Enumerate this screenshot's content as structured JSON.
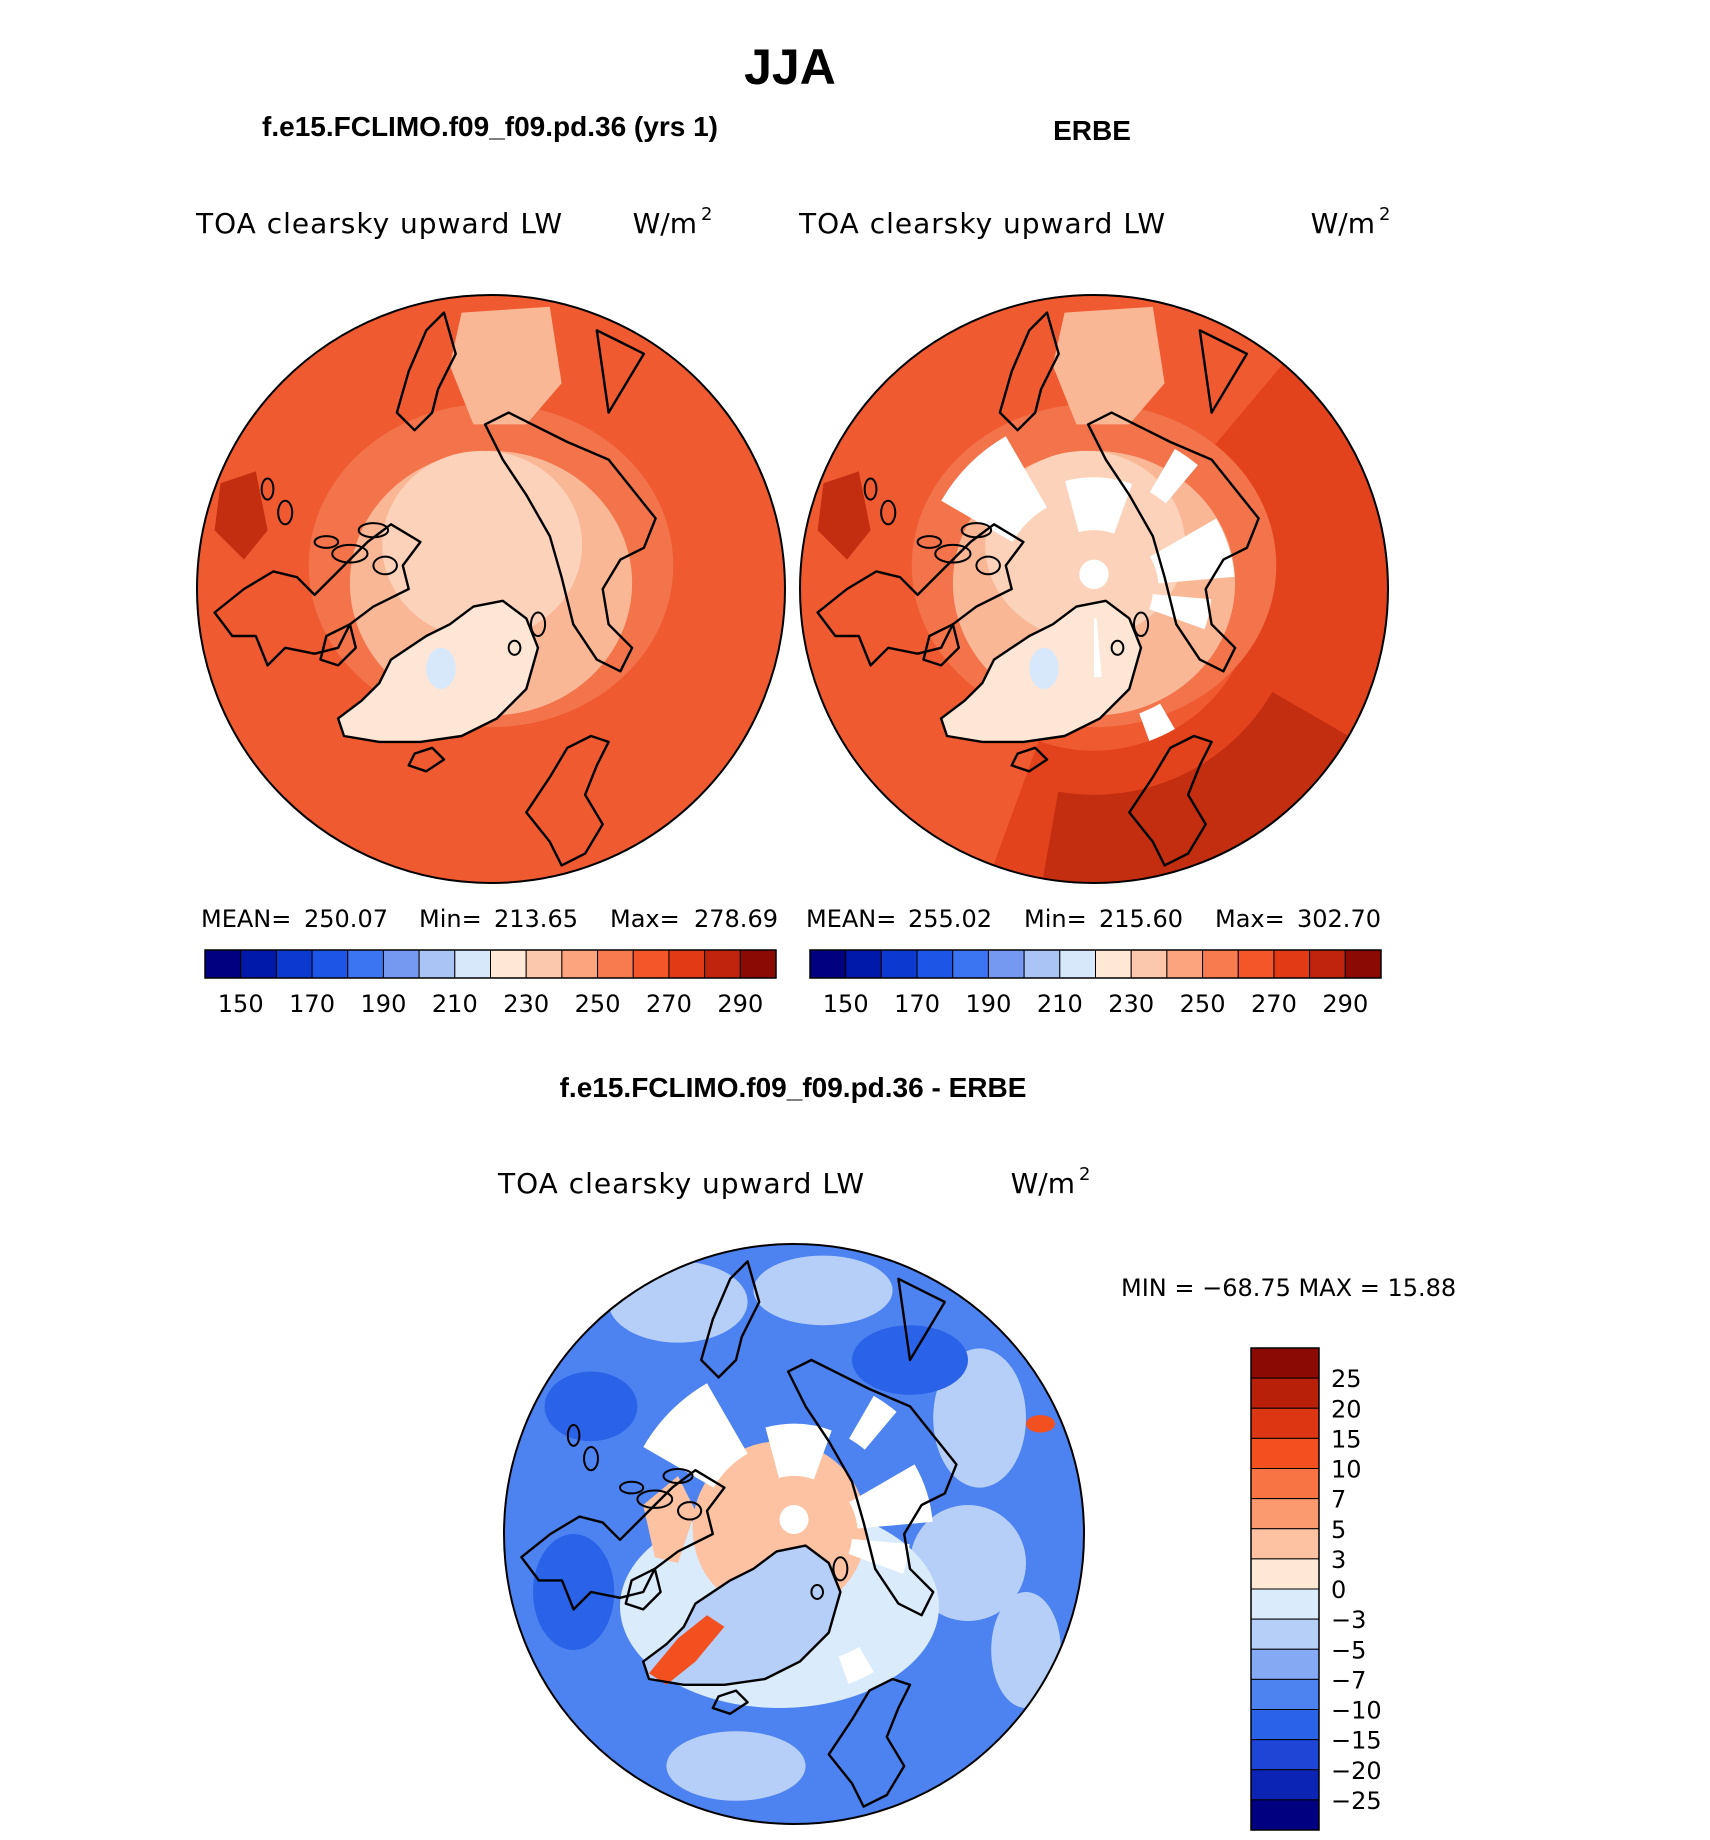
{
  "page": {
    "main_title": "JJA",
    "left_panel_title": "f.e15.FCLIMO.f09_f09.pd.36 (yrs 1)",
    "right_panel_title": "ERBE",
    "diff_title": "f.e15.FCLIMO.f09_f09.pd.36 - ERBE"
  },
  "panels": {
    "left": {
      "variable": "TOA clearsky upward LW",
      "units": "W/m",
      "units_sup": "2",
      "stats": {
        "mean_label": "MEAN=",
        "mean": "250.07",
        "min_label": "Min=",
        "min": "213.65",
        "max_label": "Max=",
        "max": "278.69"
      }
    },
    "right": {
      "variable": "TOA clearsky upward LW",
      "units": "W/m",
      "units_sup": "2",
      "stats": {
        "mean_label": "MEAN=",
        "mean": "255.02",
        "min_label": "Min=",
        "min": "215.60",
        "max_label": "Max=",
        "max": "302.70"
      }
    },
    "diff": {
      "variable": "TOA clearsky upward LW",
      "units": "W/m",
      "units_sup": "2",
      "minmax": "MIN = −68.75 MAX =   15.88"
    }
  },
  "colorbars": {
    "abs": {
      "colors": [
        "#000080",
        "#0019a8",
        "#0c3ad0",
        "#1d55e6",
        "#3b75f1",
        "#7599f1",
        "#aac4f6",
        "#d7e8fa",
        "#ffe8d6",
        "#fcc8ab",
        "#fba47e",
        "#f87b4f",
        "#f4562a",
        "#e23a14",
        "#c0240c",
        "#8c0a04"
      ],
      "tick_labels": [
        "150",
        "170",
        "190",
        "210",
        "230",
        "250",
        "270",
        "290"
      ]
    },
    "diff": {
      "colors": [
        "#000080",
        "#0c24b4",
        "#1d45d6",
        "#2a62e8",
        "#4d82f1",
        "#86a9f4",
        "#b6cff8",
        "#daebfb",
        "#ffe8d6",
        "#fcc2a2",
        "#fa9a6e",
        "#f87444",
        "#f2501f",
        "#dc3712",
        "#b82009",
        "#8c0a04"
      ],
      "tick_labels": [
        "25",
        "20",
        "15",
        "10",
        "7",
        "5",
        "3",
        "0",
        "−3",
        "−5",
        "−7",
        "−10",
        "−15",
        "−20",
        "−25"
      ]
    }
  },
  "map_colors": {
    "ocean_mid_lat": "#f05a30",
    "subarctic": "#f3734a",
    "arctic": "#fab796",
    "pole": "#fcd2ba",
    "greenland": "#fde6d6",
    "ice_cap": "#d7e8fa",
    "warm": "#e2431c",
    "hot": "#c42e10",
    "coast": "#000000",
    "missing": "#ffffff",
    "diff_base": "#4d82f1",
    "diff_light": "#b6cff8",
    "diff_pale": "#daebfb",
    "diff_deep": "#2a62e8",
    "diff_pos": "#fcc2a2",
    "diff_pos_strong": "#f2501f"
  }
}
